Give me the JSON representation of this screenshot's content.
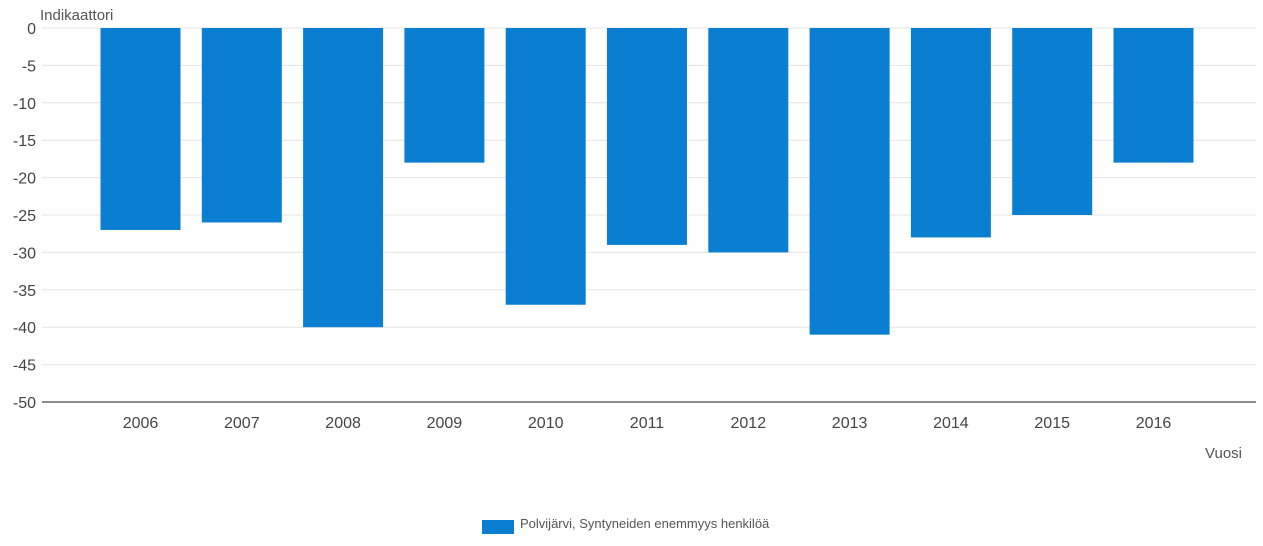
{
  "chart_data": {
    "type": "bar",
    "categories": [
      "2006",
      "2007",
      "2008",
      "2009",
      "2010",
      "2011",
      "2012",
      "2013",
      "2014",
      "2015",
      "2016"
    ],
    "series": [
      {
        "name": "Polvijärvi, Syntyneiden enemmyys henkilöä",
        "values": [
          -27,
          -26,
          -40,
          -18,
          -37,
          -29,
          -30,
          -41,
          -28,
          -25,
          -18
        ]
      }
    ],
    "ylabel": "Indikaattori",
    "xlabel": "Vuosi",
    "ylim": [
      -50,
      0
    ],
    "yticks": [
      0,
      -5,
      -10,
      -15,
      -20,
      -25,
      -30,
      -35,
      -40,
      -45,
      -50
    ],
    "grid": true,
    "legend_position": "bottom",
    "colors": {
      "bar": "#0a7fd2",
      "grid": "#e4e4e4",
      "axis": "#666666"
    }
  }
}
